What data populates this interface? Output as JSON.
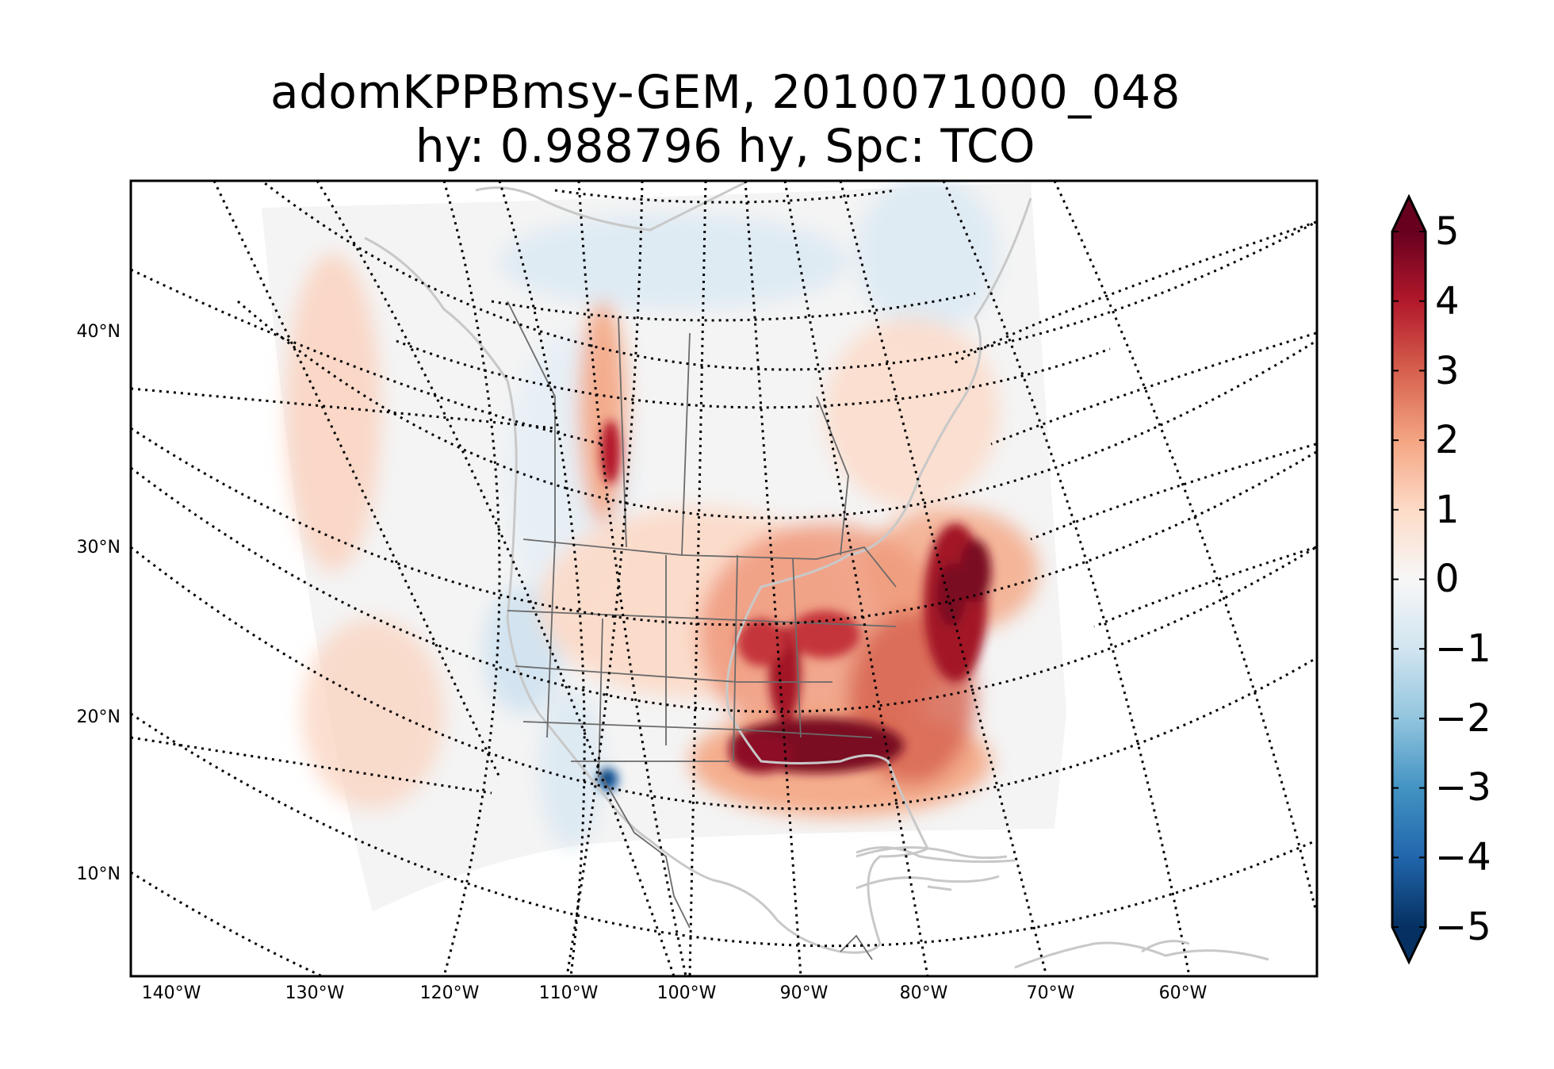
{
  "title": {
    "line1": "adomKPPBmsy-GEM, 2010071000_048",
    "line2": "hy: 0.988796 hy, Spc: TCO"
  },
  "map": {
    "projection": "polar stereographic / conic view of North America",
    "graticule_style": "dotted black",
    "land_outline_color": "#c8c8c8",
    "political_border_color": "#6b6b6b",
    "domain_background_color": "#f4f4f4",
    "lat_labels": [
      "40°N",
      "30°N",
      "20°N",
      "10°N"
    ],
    "lon_labels": [
      "140°W",
      "130°W",
      "120°W",
      "110°W",
      "100°W",
      "90°W",
      "80°W",
      "70°W",
      "60°W"
    ]
  },
  "colorbar": {
    "colormap": "RdBu_r",
    "min": -5,
    "max": 5,
    "extend": "both",
    "tick_labels": [
      "5",
      "4",
      "3",
      "2",
      "1",
      "0",
      "−1",
      "−2",
      "−3",
      "−4",
      "−5"
    ],
    "colors": {
      "minus5": "#053061",
      "minus4": "#2166ac",
      "minus3": "#4393c3",
      "minus2": "#92c5de",
      "minus1": "#d1e5f0",
      "zero": "#f7f7f7",
      "plus1": "#fddbc7",
      "plus2": "#f4a582",
      "plus3": "#d6604d",
      "plus4": "#b2182b",
      "plus5": "#67001f"
    }
  }
}
